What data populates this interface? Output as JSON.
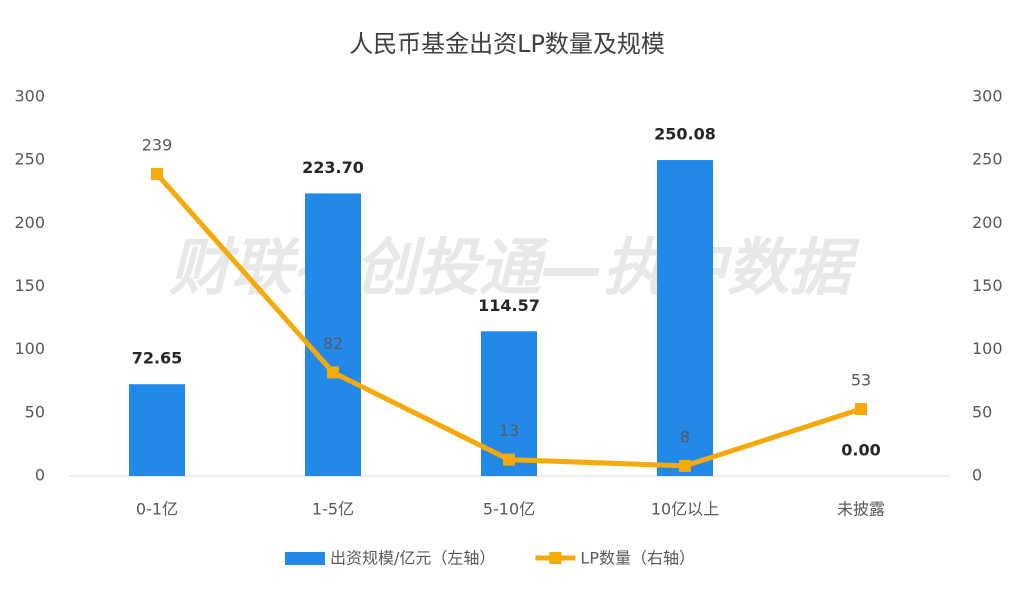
{
  "chart_data": {
    "type": "combo",
    "title": "人民币基金出资LP数量及规模",
    "watermark": "财联社创投通—执中数据",
    "categories": [
      "0-1亿",
      "1-5亿",
      "5-10亿",
      "10亿以上",
      "未披露"
    ],
    "series": [
      {
        "name": "出资规模/亿元（左轴）",
        "type": "bar",
        "color": "#2389e8",
        "values": [
          72.65,
          223.7,
          114.57,
          250.08,
          0
        ],
        "value_labels": [
          "72.65",
          "223.70",
          "114.57",
          "250.08",
          "0.00"
        ]
      },
      {
        "name": "LP数量（右轴）",
        "type": "line",
        "axis": "y2",
        "color": "#f5a90a",
        "values": [
          239,
          82,
          13,
          8,
          53
        ]
      }
    ],
    "ylim": [
      0,
      300
    ],
    "yticks": [
      0,
      50,
      100,
      150,
      200,
      250,
      300
    ],
    "y2lim": [
      0,
      300
    ],
    "y2ticks": [
      0,
      50,
      100,
      150,
      200,
      250,
      300
    ]
  }
}
